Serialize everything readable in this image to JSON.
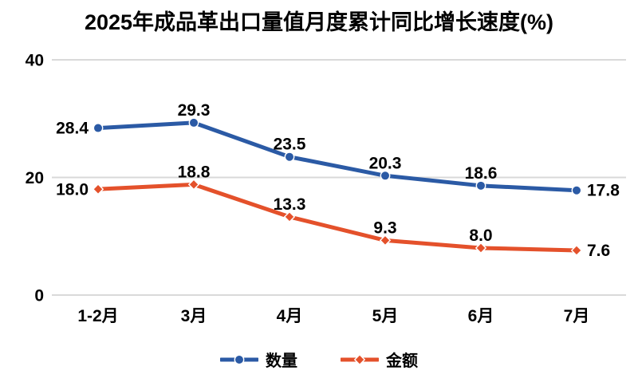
{
  "title": "2025年成品革出口量值月度累计同比增长速度(%)",
  "chart_data": {
    "type": "line",
    "categories": [
      "1-2月",
      "3月",
      "4月",
      "5月",
      "6月",
      "7月"
    ],
    "series": [
      {
        "name": "数量",
        "values": [
          28.4,
          29.3,
          23.5,
          20.3,
          18.6,
          17.8
        ],
        "color": "#2B5AA5",
        "marker": "circle"
      },
      {
        "name": "金额",
        "values": [
          18.0,
          18.8,
          13.3,
          9.3,
          8.0,
          7.6
        ],
        "color": "#E4512B",
        "marker": "diamond"
      }
    ],
    "ylim": [
      0,
      40
    ],
    "yticks": [
      40,
      20,
      0
    ],
    "grid": true,
    "gridline_color": "#D9D9D9",
    "text_color": "#000000",
    "legend_position": "bottom",
    "value_labels": true,
    "value_label_decimals": 1
  }
}
